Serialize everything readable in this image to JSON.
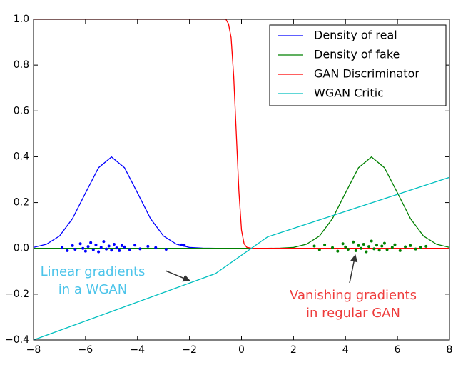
{
  "chart_data": {
    "type": "line",
    "xlim": [
      -8,
      8
    ],
    "ylim": [
      -0.4,
      1.0
    ],
    "xticks": [
      {
        "value": -8,
        "label": "−8"
      },
      {
        "value": -6,
        "label": "−6"
      },
      {
        "value": -4,
        "label": "−4"
      },
      {
        "value": -2,
        "label": "−2"
      },
      0,
      2,
      4,
      6,
      8
    ],
    "yticks": [
      {
        "value": -0.4,
        "label": "−0.4"
      },
      {
        "value": -0.2,
        "label": "−0.2"
      },
      {
        "value": 0,
        "label": "0.0"
      },
      0.2,
      0.4,
      0.6,
      0.8,
      {
        "value": 1.0,
        "label": "1.0"
      }
    ],
    "legend": "upper right",
    "series": [
      {
        "name": "Density of real",
        "color": "#0000ff",
        "x": [
          -8,
          -7.5,
          -7,
          -6.5,
          -6,
          -5.5,
          -5,
          -4.5,
          -4,
          -3.5,
          -3,
          -2.5,
          -2,
          -1.5,
          -1,
          -0.5,
          0,
          0.5,
          1,
          1.5,
          2,
          2.5,
          3,
          3.5,
          4,
          4.5,
          5,
          5.5,
          6,
          6.5,
          7,
          7.5,
          8
        ],
        "values": [
          0.004,
          0.018,
          0.054,
          0.13,
          0.242,
          0.352,
          0.399,
          0.352,
          0.242,
          0.13,
          0.054,
          0.018,
          0.004,
          0.001,
          0,
          0,
          0,
          0,
          0,
          0,
          0,
          0,
          0,
          0,
          0,
          0,
          0,
          0,
          0,
          0,
          0,
          0,
          0
        ]
      },
      {
        "name": "Density of fake",
        "color": "#008000",
        "x": [
          -8,
          -7.5,
          -7,
          -6.5,
          -6,
          -5.5,
          -5,
          -4.5,
          -4,
          -3.5,
          -3,
          -2.5,
          -2,
          -1.5,
          -1,
          -0.5,
          0,
          0.5,
          1,
          1.5,
          2,
          2.5,
          3,
          3.5,
          4,
          4.5,
          5,
          5.5,
          6,
          6.5,
          7,
          7.5,
          8
        ],
        "values": [
          0,
          0,
          0,
          0,
          0,
          0,
          0,
          0,
          0,
          0,
          0,
          0,
          0,
          0,
          0,
          0,
          0,
          0,
          0,
          0.001,
          0.004,
          0.018,
          0.054,
          0.13,
          0.242,
          0.352,
          0.399,
          0.352,
          0.242,
          0.13,
          0.054,
          0.018,
          0.004
        ]
      },
      {
        "name": "GAN Discriminator",
        "color": "#ff0000",
        "x": [
          -8,
          -0.6,
          -0.5,
          -0.4,
          -0.3,
          -0.2,
          -0.1,
          0,
          0.1,
          0.2,
          0.4,
          8
        ],
        "values": [
          1,
          1,
          0.98,
          0.92,
          0.75,
          0.5,
          0.25,
          0.08,
          0.02,
          0.005,
          0,
          0
        ]
      },
      {
        "name": "WGAN Critic",
        "color": "#00bfbf",
        "x": [
          -8,
          -1,
          1,
          8
        ],
        "values": [
          -0.4,
          -0.11,
          0.05,
          0.31
        ]
      }
    ],
    "samples": [
      {
        "color": "#0000ff",
        "x": [
          -6.9,
          -6.7,
          -6.5,
          -6.4,
          -6.2,
          -6.1,
          -6.0,
          -5.9,
          -5.8,
          -5.7,
          -5.6,
          -5.5,
          -5.4,
          -5.3,
          -5.2,
          -5.1,
          -5.0,
          -4.9,
          -4.8,
          -4.7,
          -4.6,
          -4.5,
          -4.3,
          -4.1,
          -3.9,
          -3.6,
          -3.3,
          -2.9,
          -2.3,
          -2.2
        ],
        "values": [
          0.005,
          -0.01,
          0.012,
          -0.004,
          0.02,
          0.0,
          -0.012,
          0.008,
          0.025,
          -0.006,
          0.015,
          -0.015,
          0.004,
          0.03,
          -0.003,
          0.01,
          -0.008,
          0.018,
          0.002,
          -0.01,
          0.012,
          0.006,
          -0.005,
          0.014,
          -0.002,
          0.009,
          0.003,
          -0.004,
          0.015,
          0.013
        ]
      },
      {
        "color": "#008000",
        "x": [
          2.8,
          3.0,
          3.2,
          3.5,
          3.7,
          3.9,
          4.0,
          4.1,
          4.3,
          4.4,
          4.5,
          4.6,
          4.7,
          4.8,
          4.9,
          5.0,
          5.1,
          5.2,
          5.3,
          5.4,
          5.5,
          5.6,
          5.8,
          5.9,
          6.1,
          6.3,
          6.5,
          6.7,
          6.9,
          7.1
        ],
        "values": [
          0.01,
          -0.006,
          0.015,
          0.003,
          -0.012,
          0.02,
          0.006,
          -0.004,
          0.028,
          -0.01,
          0.012,
          0.0,
          0.018,
          -0.015,
          0.008,
          0.032,
          -0.002,
          0.014,
          -0.008,
          0.01,
          0.022,
          -0.005,
          0.004,
          0.016,
          -0.01,
          0.007,
          0.012,
          -0.003,
          0.005,
          0.009
        ]
      }
    ],
    "annotations": [
      {
        "text": [
          "Linear gradients",
          "in a WGAN"
        ],
        "color": "#4cc4ea"
      },
      {
        "text": [
          "Vanishing gradients",
          "in regular GAN"
        ],
        "color": "#ee3b3b"
      }
    ]
  }
}
